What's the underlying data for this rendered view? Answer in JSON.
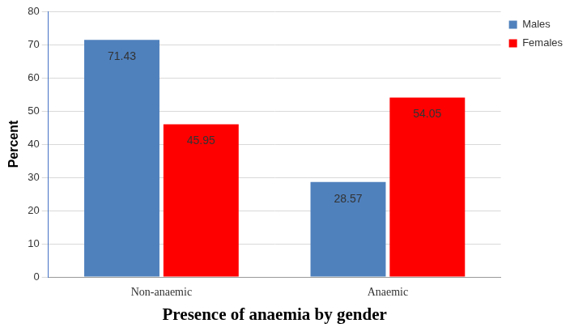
{
  "chart_data": {
    "type": "bar",
    "categories": [
      "Non-anaemic",
      "Anaemic"
    ],
    "series": [
      {
        "name": "Males",
        "color": "#4f81bd",
        "values": [
          71.43,
          28.57
        ]
      },
      {
        "name": "Females",
        "color": "#ff0000",
        "values": [
          45.95,
          54.05
        ]
      }
    ],
    "x_label": "Presence of anaemia by gender",
    "y_label": "Percent",
    "ylim": [
      0,
      80
    ],
    "yticks": [
      0,
      10,
      20,
      30,
      40,
      50,
      60,
      70,
      80
    ],
    "grid": true,
    "legend": "top-right",
    "data_labels": true
  }
}
